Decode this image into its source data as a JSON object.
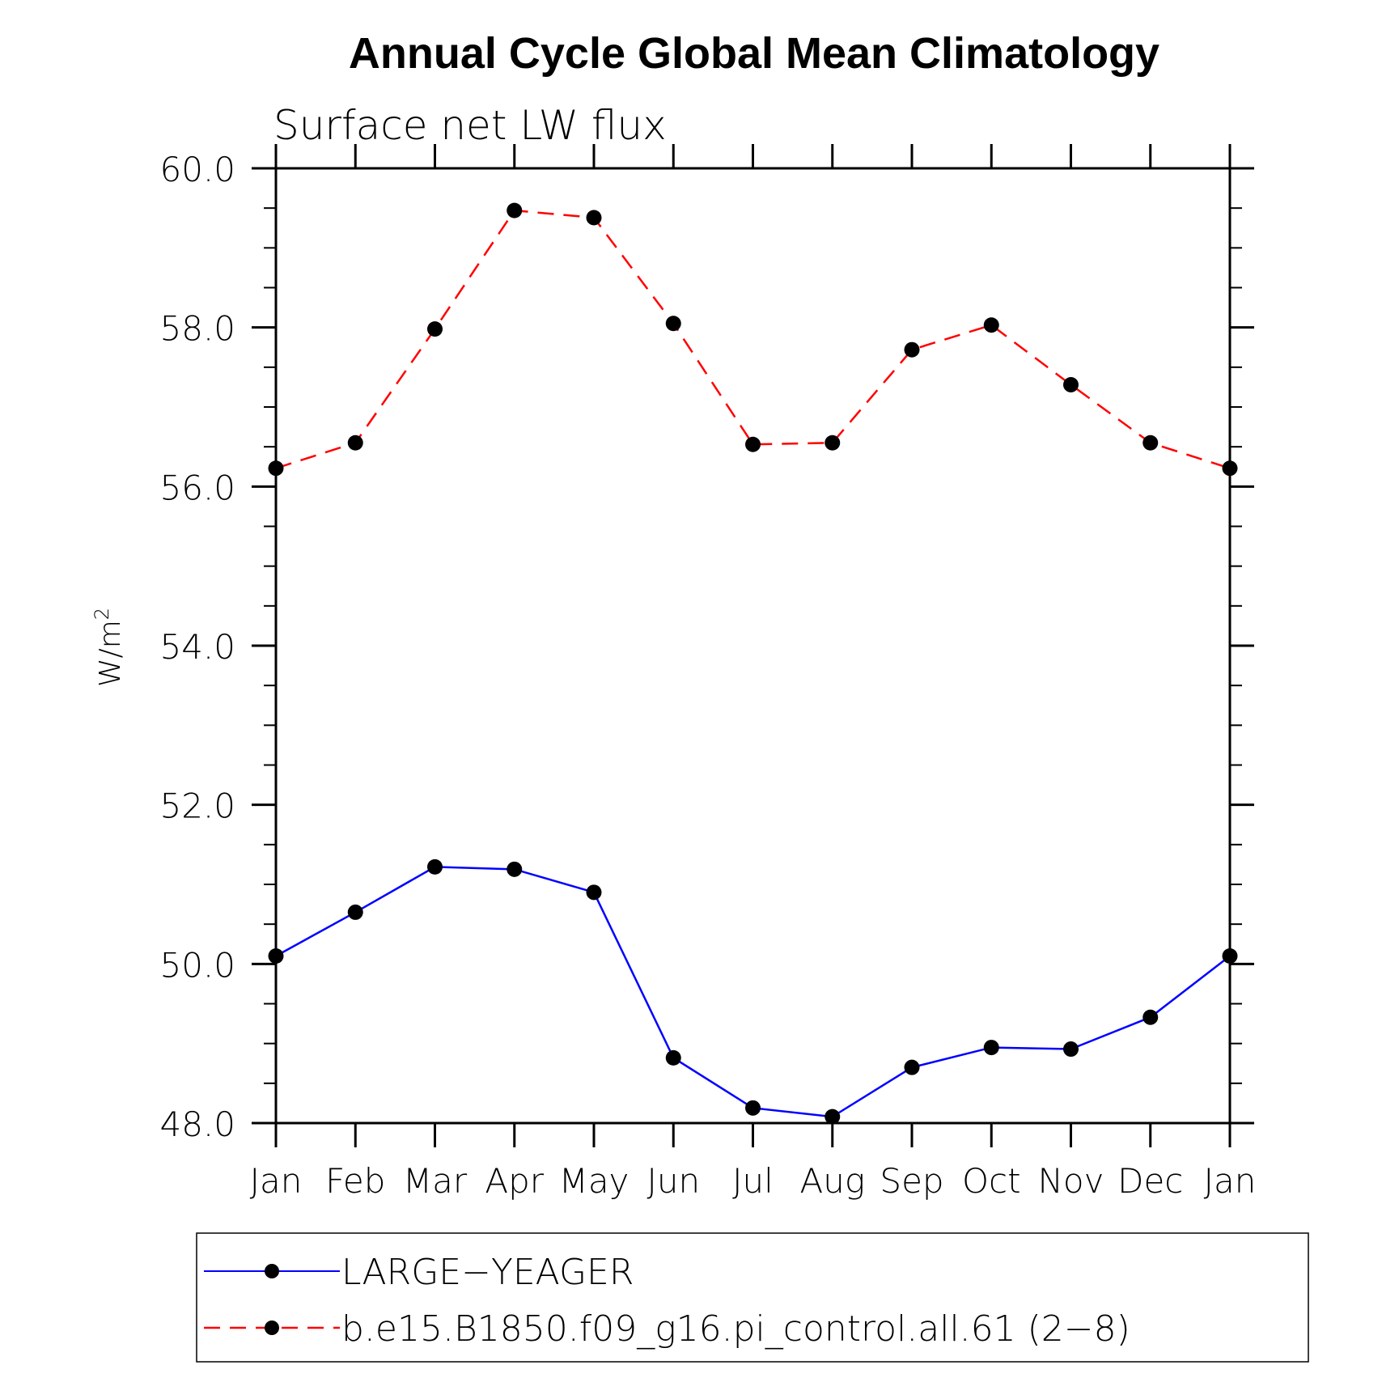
{
  "chart_data": {
    "type": "line",
    "title": "Annual Cycle Global Mean Climatology",
    "subtitle": "Surface net LW flux",
    "ylabel": "W/m",
    "ylabel_sup": "2",
    "categories": [
      "Jan",
      "Feb",
      "Mar",
      "Apr",
      "May",
      "Jun",
      "Jul",
      "Aug",
      "Sep",
      "Oct",
      "Nov",
      "Dec",
      "Jan"
    ],
    "yticks": [
      "48.0",
      "50.0",
      "52.0",
      "54.0",
      "56.0",
      "58.0",
      "60.0"
    ],
    "ylim": [
      48,
      60
    ],
    "grid": false,
    "legend_position": "bottom",
    "series": [
      {
        "name": "LARGE−YEAGER",
        "color": "#0000ff",
        "line_style": "solid",
        "marker": "filled-circle",
        "values": [
          50.1,
          50.65,
          51.22,
          51.19,
          50.9,
          48.82,
          48.19,
          48.08,
          48.7,
          48.95,
          48.93,
          49.33,
          50.1
        ]
      },
      {
        "name": "b.e15.B1850.f09_g16.pi_control.all.61 (2−8)",
        "color": "#ff0000",
        "line_style": "dashed",
        "marker": "filled-circle",
        "values": [
          56.23,
          56.55,
          57.98,
          59.47,
          59.38,
          58.05,
          56.53,
          56.55,
          57.72,
          58.03,
          57.28,
          56.55,
          56.23
        ]
      }
    ]
  }
}
